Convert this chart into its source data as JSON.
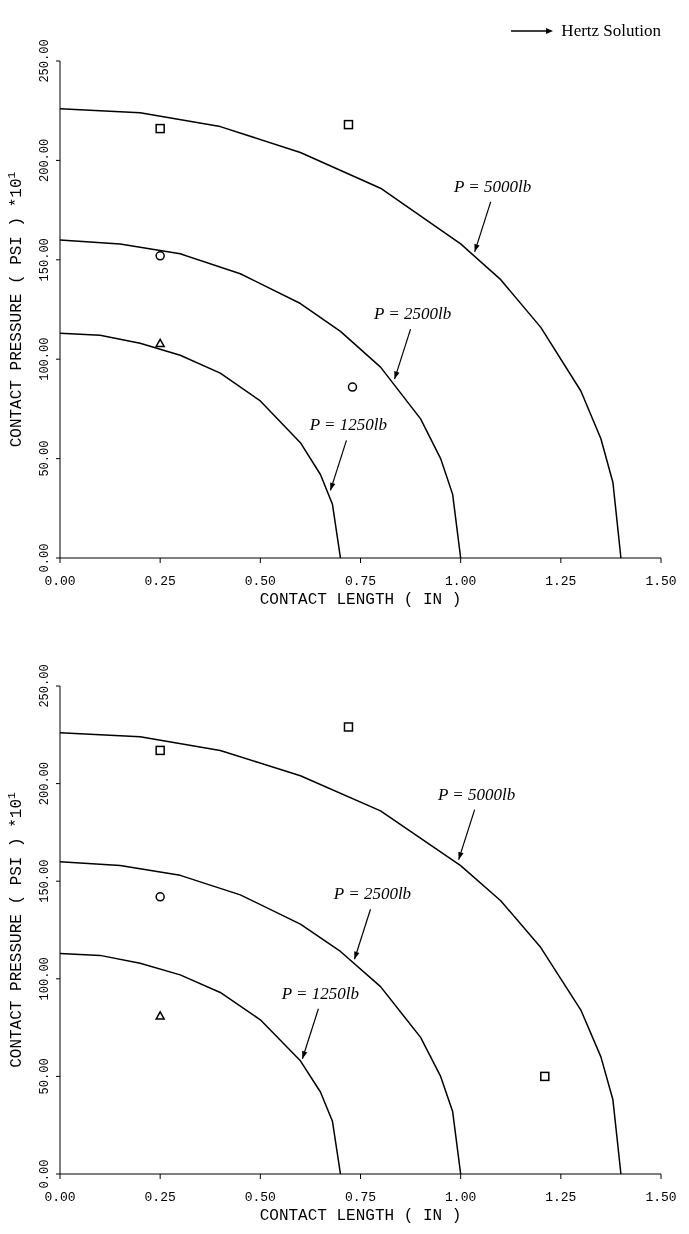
{
  "chart_data": [
    {
      "type": "line",
      "xlabel": "CONTACT LENGTH ( IN )",
      "ylabel": "CONTACT PRESSURE ( PSI )   *10$^{1}$",
      "xlim": [
        0,
        1.5
      ],
      "ylim": [
        0,
        250
      ],
      "xticks": [
        {
          "value": 0,
          "label": "0.00"
        },
        {
          "value": 0.25,
          "label": "0.25"
        },
        {
          "value": 0.5,
          "label": "0.50"
        },
        {
          "value": 0.75,
          "label": "0.75"
        },
        {
          "value": 1,
          "label": "1.00"
        },
        {
          "value": 1.25,
          "label": "1.25"
        },
        {
          "value": 1.5,
          "label": "1.50"
        }
      ],
      "yticks": [
        {
          "value": 0,
          "label": "0.00"
        },
        {
          "value": 50,
          "label": "50.00"
        },
        {
          "value": 100,
          "label": "100.00"
        },
        {
          "value": 150,
          "label": "150.00"
        },
        {
          "value": 200,
          "label": "200.00"
        },
        {
          "value": 250,
          "label": "250.00"
        }
      ],
      "legend": "top right",
      "marker": "none",
      "line_style": "solid",
      "series": [
        {
          "name": "Hertz Solution",
          "color": "#000000",
          "x": [
            0,
            0.2,
            0.4,
            0.6,
            0.8,
            1.0,
            1.1,
            1.2,
            1.3,
            1.35,
            1.38,
            1.4
          ],
          "values": [
            226,
            224,
            217,
            204,
            186,
            158,
            140,
            116,
            84,
            60,
            38,
            0
          ]
        },
        {
          "color": "#000000",
          "x": [
            0,
            0.15,
            0.3,
            0.45,
            0.6,
            0.7,
            0.8,
            0.9,
            0.95,
            0.98,
            1.0
          ],
          "values": [
            160,
            158,
            153,
            143,
            128,
            114,
            96,
            70,
            50,
            32,
            0
          ]
        },
        {
          "color": "#000000",
          "x": [
            0,
            0.1,
            0.2,
            0.3,
            0.4,
            0.5,
            0.6,
            0.65,
            0.68,
            0.7
          ],
          "values": [
            113,
            112,
            108,
            102,
            93,
            79,
            58,
            42,
            27,
            0
          ]
        },
        {
          "type": "scatter",
          "marker": "square",
          "color": "#000000",
          "x": [
            0.25,
            0.72
          ],
          "values": [
            216,
            218
          ]
        },
        {
          "type": "scatter",
          "marker": "circle",
          "color": "#000000",
          "x": [
            0.25,
            0.73
          ],
          "values": [
            152,
            86
          ]
        },
        {
          "type": "scatter",
          "marker": "triangle",
          "color": "#000000",
          "x": [
            0.25
          ],
          "values": [
            108
          ]
        }
      ],
      "annotations": [
        {
          "text": "P = 5000lb",
          "x": 1.03,
          "y": 153
        },
        {
          "text": "P = 2500lb",
          "x": 0.83,
          "y": 89
        },
        {
          "text": "P = 1250lb",
          "x": 0.67,
          "y": 33
        }
      ]
    },
    {
      "type": "line",
      "xlabel": "CONTACT LENGTH ( IN )",
      "ylabel": "CONTACT PRESSURE ( PSI )   *10$^{1}$",
      "xlim": [
        0,
        1.5
      ],
      "ylim": [
        0,
        250
      ],
      "xticks": [
        {
          "value": 0,
          "label": "0.00"
        },
        {
          "value": 0.25,
          "label": "0.25"
        },
        {
          "value": 0.5,
          "label": "0.50"
        },
        {
          "value": 0.75,
          "label": "0.75"
        },
        {
          "value": 1,
          "label": "1.00"
        },
        {
          "value": 1.25,
          "label": "1.25"
        },
        {
          "value": 1.5,
          "label": "1.50"
        }
      ],
      "yticks": [
        {
          "value": 0,
          "label": "0.00"
        },
        {
          "value": 50,
          "label": "50.00"
        },
        {
          "value": 100,
          "label": "100.00"
        },
        {
          "value": 150,
          "label": "150.00"
        },
        {
          "value": 200,
          "label": "200.00"
        },
        {
          "value": 250,
          "label": "250.00"
        }
      ],
      "marker": "none",
      "line_style": "solid",
      "series": [
        {
          "color": "#000000",
          "x": [
            0,
            0.2,
            0.4,
            0.6,
            0.8,
            1.0,
            1.1,
            1.2,
            1.3,
            1.35,
            1.38,
            1.4
          ],
          "values": [
            226,
            224,
            217,
            204,
            186,
            158,
            140,
            116,
            84,
            60,
            38,
            0
          ]
        },
        {
          "color": "#000000",
          "x": [
            0,
            0.15,
            0.3,
            0.45,
            0.6,
            0.7,
            0.8,
            0.9,
            0.95,
            0.98,
            1.0
          ],
          "values": [
            160,
            158,
            153,
            143,
            128,
            114,
            96,
            70,
            50,
            32,
            0
          ]
        },
        {
          "color": "#000000",
          "x": [
            0,
            0.1,
            0.2,
            0.3,
            0.4,
            0.5,
            0.6,
            0.65,
            0.68,
            0.7
          ],
          "values": [
            113,
            112,
            108,
            102,
            93,
            79,
            58,
            42,
            27,
            0
          ]
        },
        {
          "type": "scatter",
          "marker": "square",
          "color": "#000000",
          "x": [
            0.25,
            0.72,
            1.21
          ],
          "values": [
            217,
            229,
            50
          ]
        },
        {
          "type": "scatter",
          "marker": "circle",
          "color": "#000000",
          "x": [
            0.25
          ],
          "values": [
            142
          ]
        },
        {
          "type": "scatter",
          "marker": "triangle",
          "color": "#000000",
          "x": [
            0.25
          ],
          "values": [
            81
          ]
        }
      ],
      "annotations": [
        {
          "text": "P = 5000lb",
          "x": 0.99,
          "y": 160
        },
        {
          "text": "P = 2500lb",
          "x": 0.73,
          "y": 109
        },
        {
          "text": "P = 1250lb",
          "x": 0.6,
          "y": 58
        }
      ]
    }
  ]
}
